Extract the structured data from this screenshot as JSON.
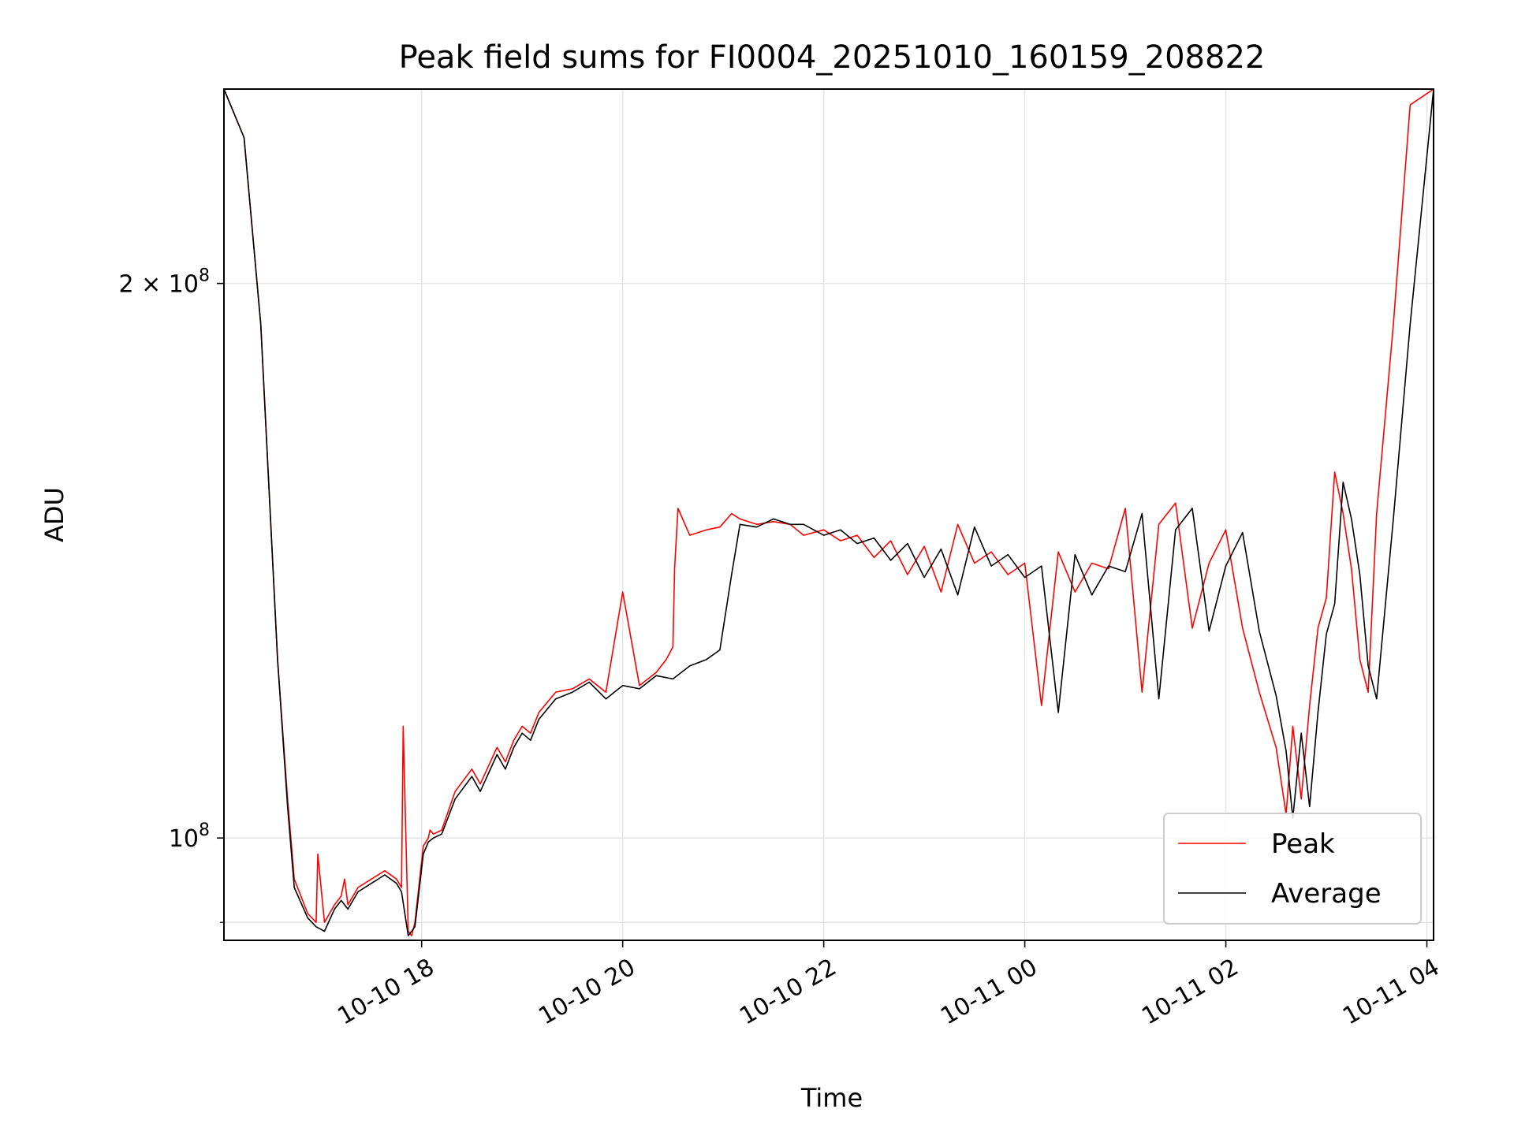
{
  "chart_data": {
    "type": "line",
    "title": "Peak field sums for FI0004_20251010_160159_208822",
    "xlabel": "Time",
    "ylabel": "ADU",
    "y_scale": "log",
    "ylim": [
      88000000,
      255000000
    ],
    "xlim": [
      "2025-10-10 16:02",
      "2025-10-11 04:04"
    ],
    "x_ticks": [
      {
        "value": "2025-10-10 18:00",
        "label": "10-10 18"
      },
      {
        "value": "2025-10-10 20:00",
        "label": "10-10 20"
      },
      {
        "value": "2025-10-10 22:00",
        "label": "10-10 22"
      },
      {
        "value": "2025-10-11 00:00",
        "label": "10-11 00"
      },
      {
        "value": "2025-10-11 02:00",
        "label": "10-11 02"
      },
      {
        "value": "2025-10-11 04:00",
        "label": "10-11 04"
      }
    ],
    "y_ticks": [
      {
        "value": 200000000,
        "base": "2 × 10",
        "exp": "8"
      },
      {
        "value": 100000000,
        "base": "10",
        "exp": "8"
      }
    ],
    "y_minor_ticks": [
      90000000
    ],
    "grid": true,
    "legend_position": "lower right",
    "series": [
      {
        "name": "Peak",
        "color": "#ff0000",
        "x": [
          "2025-10-10 16:02",
          "2025-10-10 16:14",
          "2025-10-10 16:24",
          "2025-10-10 16:34",
          "2025-10-10 16:40",
          "2025-10-10 16:44",
          "2025-10-10 16:52",
          "2025-10-10 16:57",
          "2025-10-10 16:58",
          "2025-10-10 17:02",
          "2025-10-10 17:08",
          "2025-10-10 17:12",
          "2025-10-10 17:14",
          "2025-10-10 17:16",
          "2025-10-10 17:22",
          "2025-10-10 17:30",
          "2025-10-10 17:38",
          "2025-10-10 17:45",
          "2025-10-10 17:48",
          "2025-10-10 17:49",
          "2025-10-10 17:52",
          "2025-10-10 17:54",
          "2025-10-10 17:56",
          "2025-10-10 18:01",
          "2025-10-10 18:04",
          "2025-10-10 18:05",
          "2025-10-10 18:07",
          "2025-10-10 18:12",
          "2025-10-10 18:20",
          "2025-10-10 18:30",
          "2025-10-10 18:35",
          "2025-10-10 18:45",
          "2025-10-10 18:50",
          "2025-10-10 18:55",
          "2025-10-10 19:00",
          "2025-10-10 19:05",
          "2025-10-10 19:10",
          "2025-10-10 19:20",
          "2025-10-10 19:30",
          "2025-10-10 19:40",
          "2025-10-10 19:50",
          "2025-10-10 20:00",
          "2025-10-10 20:10",
          "2025-10-10 20:20",
          "2025-10-10 20:26",
          "2025-10-10 20:30",
          "2025-10-10 20:31",
          "2025-10-10 20:33",
          "2025-10-10 20:40",
          "2025-10-10 20:50",
          "2025-10-10 20:58",
          "2025-10-10 21:05",
          "2025-10-10 21:10",
          "2025-10-10 21:20",
          "2025-10-10 21:30",
          "2025-10-10 21:40",
          "2025-10-10 21:48",
          "2025-10-10 22:00",
          "2025-10-10 22:10",
          "2025-10-10 22:20",
          "2025-10-10 22:30",
          "2025-10-10 22:40",
          "2025-10-10 22:50",
          "2025-10-10 23:00",
          "2025-10-10 23:10",
          "2025-10-10 23:20",
          "2025-10-10 23:30",
          "2025-10-10 23:40",
          "2025-10-10 23:50",
          "2025-10-11 00:00",
          "2025-10-11 00:10",
          "2025-10-11 00:20",
          "2025-10-11 00:30",
          "2025-10-11 00:40",
          "2025-10-11 00:50",
          "2025-10-11 01:00",
          "2025-10-11 01:10",
          "2025-10-11 01:20",
          "2025-10-11 01:30",
          "2025-10-11 01:40",
          "2025-10-11 01:50",
          "2025-10-11 02:00",
          "2025-10-11 02:10",
          "2025-10-11 02:20",
          "2025-10-11 02:30",
          "2025-10-11 02:36",
          "2025-10-11 02:40",
          "2025-10-11 02:45",
          "2025-10-11 02:50",
          "2025-10-11 02:55",
          "2025-10-11 03:00",
          "2025-10-11 03:05",
          "2025-10-11 03:10",
          "2025-10-11 03:15",
          "2025-10-11 03:20",
          "2025-10-11 03:25",
          "2025-10-11 03:30",
          "2025-10-11 03:40",
          "2025-10-11 03:50",
          "2025-10-11 04:04"
        ],
        "values": [
          255000000,
          240000000,
          190000000,
          125000000,
          105000000,
          95000000,
          91000000,
          90000000,
          98000000,
          90000000,
          92000000,
          93000000,
          95000000,
          92000000,
          94000000,
          95000000,
          96000000,
          95000000,
          94000000,
          115000000,
          89000000,
          88500000,
          90000000,
          99000000,
          100000000,
          101000000,
          100500000,
          101000000,
          106000000,
          109000000,
          107000000,
          112000000,
          110000000,
          113000000,
          115000000,
          114000000,
          117000000,
          120000000,
          120500000,
          122000000,
          120000000,
          136000000,
          121000000,
          123000000,
          125000000,
          127000000,
          140000000,
          151000000,
          146000000,
          147000000,
          147500000,
          150000000,
          149000000,
          148000000,
          148500000,
          148000000,
          146000000,
          147000000,
          145000000,
          146000000,
          142000000,
          145000000,
          139000000,
          144000000,
          136000000,
          148000000,
          141000000,
          143000000,
          139000000,
          141000000,
          118000000,
          143000000,
          136000000,
          141000000,
          140000000,
          151000000,
          120000000,
          148000000,
          152000000,
          130000000,
          141000000,
          147000000,
          130000000,
          120000000,
          112000000,
          103000000,
          115000000,
          105000000,
          118000000,
          130000000,
          135000000,
          158000000,
          150000000,
          140000000,
          125000000,
          120000000,
          150000000,
          190000000,
          250000000,
          255000000
        ]
      },
      {
        "name": "Average",
        "color": "#000000",
        "x": [
          "2025-10-10 16:02",
          "2025-10-10 16:14",
          "2025-10-10 16:24",
          "2025-10-10 16:34",
          "2025-10-10 16:40",
          "2025-10-10 16:44",
          "2025-10-10 16:52",
          "2025-10-10 16:57",
          "2025-10-10 17:02",
          "2025-10-10 17:08",
          "2025-10-10 17:12",
          "2025-10-10 17:16",
          "2025-10-10 17:22",
          "2025-10-10 17:30",
          "2025-10-10 17:38",
          "2025-10-10 17:45",
          "2025-10-10 17:48",
          "2025-10-10 17:52",
          "2025-10-10 17:56",
          "2025-10-10 18:01",
          "2025-10-10 18:04",
          "2025-10-10 18:07",
          "2025-10-10 18:12",
          "2025-10-10 18:20",
          "2025-10-10 18:30",
          "2025-10-10 18:35",
          "2025-10-10 18:45",
          "2025-10-10 18:50",
          "2025-10-10 18:55",
          "2025-10-10 19:00",
          "2025-10-10 19:05",
          "2025-10-10 19:10",
          "2025-10-10 19:20",
          "2025-10-10 19:30",
          "2025-10-10 19:40",
          "2025-10-10 19:50",
          "2025-10-10 20:00",
          "2025-10-10 20:10",
          "2025-10-10 20:20",
          "2025-10-10 20:30",
          "2025-10-10 20:40",
          "2025-10-10 20:50",
          "2025-10-10 20:58",
          "2025-10-10 21:05",
          "2025-10-10 21:10",
          "2025-10-10 21:20",
          "2025-10-10 21:30",
          "2025-10-10 21:40",
          "2025-10-10 21:48",
          "2025-10-10 22:00",
          "2025-10-10 22:10",
          "2025-10-10 22:20",
          "2025-10-10 22:30",
          "2025-10-10 22:40",
          "2025-10-10 22:50",
          "2025-10-10 23:00",
          "2025-10-10 23:10",
          "2025-10-10 23:20",
          "2025-10-10 23:30",
          "2025-10-10 23:40",
          "2025-10-10 23:50",
          "2025-10-11 00:00",
          "2025-10-11 00:10",
          "2025-10-11 00:20",
          "2025-10-11 00:30",
          "2025-10-11 00:40",
          "2025-10-11 00:50",
          "2025-10-11 01:00",
          "2025-10-11 01:10",
          "2025-10-11 01:20",
          "2025-10-11 01:30",
          "2025-10-11 01:40",
          "2025-10-11 01:50",
          "2025-10-11 02:00",
          "2025-10-11 02:10",
          "2025-10-11 02:20",
          "2025-10-11 02:30",
          "2025-10-11 02:36",
          "2025-10-11 02:40",
          "2025-10-11 02:45",
          "2025-10-11 02:50",
          "2025-10-11 02:55",
          "2025-10-11 03:00",
          "2025-10-11 03:05",
          "2025-10-11 03:10",
          "2025-10-11 03:15",
          "2025-10-11 03:20",
          "2025-10-11 03:25",
          "2025-10-11 03:30",
          "2025-10-11 03:40",
          "2025-10-11 03:50",
          "2025-10-11 04:04"
        ],
        "values": [
          255000000,
          240000000,
          190000000,
          125000000,
          104000000,
          94000000,
          90500000,
          89500000,
          89000000,
          91500000,
          92500000,
          91500000,
          93500000,
          94500000,
          95500000,
          94500000,
          93500000,
          88500000,
          89500000,
          98000000,
          99500000,
          100000000,
          100500000,
          105000000,
          108000000,
          106000000,
          111000000,
          109000000,
          112000000,
          114000000,
          113000000,
          116000000,
          119000000,
          120000000,
          121500000,
          119000000,
          121000000,
          120500000,
          122500000,
          122000000,
          124000000,
          125000000,
          126500000,
          139000000,
          148000000,
          147500000,
          149000000,
          148000000,
          148000000,
          146000000,
          147000000,
          144500000,
          145500000,
          141500000,
          144500000,
          138500000,
          143500000,
          135500000,
          147500000,
          140500000,
          142500000,
          138500000,
          140500000,
          117000000,
          142500000,
          135500000,
          140500000,
          139500000,
          150000000,
          119000000,
          147000000,
          151000000,
          129500000,
          140500000,
          146500000,
          129500000,
          119500000,
          111500000,
          102500000,
          114000000,
          104000000,
          117000000,
          129000000,
          134000000,
          156000000,
          149000000,
          139000000,
          124000000,
          119000000,
          149000000,
          190000000,
          255000000
        ]
      }
    ]
  }
}
